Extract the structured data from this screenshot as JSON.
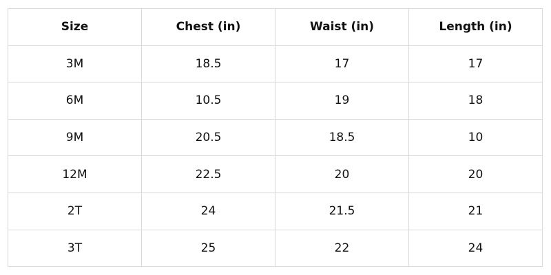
{
  "table": {
    "header": [
      "Size",
      "Chest (in)",
      "Waist (in)",
      "Length (in)"
    ],
    "rows": [
      [
        "3M",
        "18.5",
        "17",
        "17"
      ],
      [
        "6M",
        "10.5",
        "19",
        "18"
      ],
      [
        "9M",
        "20.5",
        "18.5",
        "10"
      ],
      [
        "12M",
        "22.5",
        "20",
        "20"
      ],
      [
        "2T",
        "24",
        "21.5",
        "21"
      ],
      [
        "3T",
        "25",
        "22",
        "24"
      ]
    ]
  }
}
